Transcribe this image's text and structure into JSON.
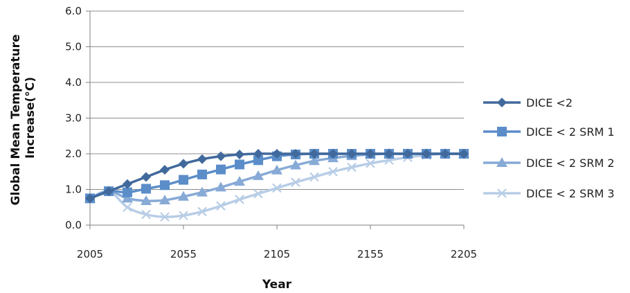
{
  "chart_data": {
    "type": "line",
    "title": "",
    "xlabel": "Year",
    "ylabel": "Global Mean Temperature Increase(°C)",
    "ylabel_lines": [
      "Global Mean Temperature",
      "Increase(°C)"
    ],
    "xlim": [
      2005,
      2205
    ],
    "ylim": [
      0,
      6
    ],
    "x_ticks": [
      "2005",
      "2055",
      "2105",
      "2155",
      "2205"
    ],
    "y_ticks": [
      "0.0",
      "1.0",
      "2.0",
      "3.0",
      "4.0",
      "5.0",
      "6.0"
    ],
    "grid": "horizontal",
    "legend_position": "right",
    "x": [
      2005,
      2015,
      2025,
      2035,
      2045,
      2055,
      2065,
      2075,
      2085,
      2095,
      2105,
      2115,
      2125,
      2135,
      2145,
      2155,
      2165,
      2175,
      2185,
      2195,
      2205
    ],
    "series": [
      {
        "name": "DICE <2",
        "color": "#41699c",
        "marker": "diamond",
        "values": [
          0.75,
          0.95,
          1.15,
          1.35,
          1.55,
          1.72,
          1.85,
          1.93,
          1.98,
          2.0,
          2.0,
          2.0,
          2.0,
          2.0,
          2.0,
          2.0,
          2.0,
          2.0,
          2.0,
          2.0,
          2.0
        ]
      },
      {
        "name": "DICE < 2 SRM 1",
        "color": "#5b8dc9",
        "marker": "square",
        "values": [
          0.75,
          0.95,
          0.92,
          1.02,
          1.12,
          1.27,
          1.42,
          1.56,
          1.7,
          1.82,
          1.93,
          1.98,
          2.0,
          2.0,
          2.0,
          2.0,
          2.0,
          2.0,
          2.0,
          2.0,
          2.0
        ]
      },
      {
        "name": "DICE < 2 SRM 2",
        "color": "#87aad6",
        "marker": "triangle",
        "values": [
          0.75,
          0.95,
          0.75,
          0.68,
          0.7,
          0.8,
          0.92,
          1.06,
          1.22,
          1.38,
          1.54,
          1.68,
          1.8,
          1.88,
          1.94,
          1.98,
          2.0,
          2.0,
          2.0,
          2.0,
          2.0
        ]
      },
      {
        "name": "DICE < 2 SRM 3",
        "color": "#b8cde6",
        "marker": "x",
        "values": [
          0.75,
          0.95,
          0.5,
          0.3,
          0.23,
          0.27,
          0.38,
          0.54,
          0.72,
          0.88,
          1.04,
          1.2,
          1.35,
          1.5,
          1.62,
          1.73,
          1.82,
          1.9,
          1.96,
          2.0,
          2.0
        ]
      }
    ]
  }
}
